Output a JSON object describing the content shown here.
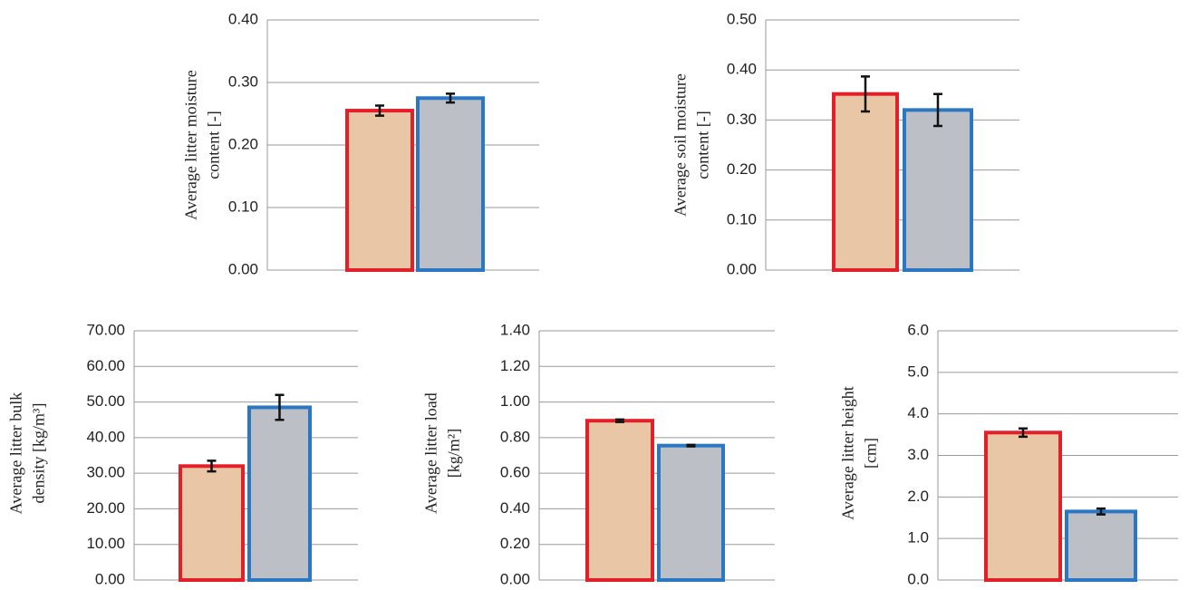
{
  "chart_data": [
    {
      "type": "bar",
      "ylabel": [
        "Average litter moisture",
        "content [-]"
      ],
      "ylim": [
        0,
        0.4
      ],
      "yticks": [
        {
          "value": 0,
          "label": "0.00"
        },
        {
          "value": 0.1,
          "label": "0.10"
        },
        {
          "value": 0.2,
          "label": "0.20"
        },
        {
          "value": 0.3,
          "label": "0.30"
        },
        {
          "value": 0.4,
          "label": "0.40"
        }
      ],
      "grid": true,
      "series": [
        {
          "color": "#e3202a",
          "fill": "#e9c7a6",
          "values": [
            0.255
          ],
          "errors": [
            0.008
          ]
        },
        {
          "color": "#2a78c2",
          "fill": "#bcbfc6",
          "values": [
            0.275
          ],
          "errors": [
            0.007
          ]
        }
      ]
    },
    {
      "type": "bar",
      "ylabel": [
        "Average soil moisture",
        "content [-]"
      ],
      "ylim": [
        0,
        0.5
      ],
      "yticks": [
        {
          "value": 0,
          "label": "0.00"
        },
        {
          "value": 0.1,
          "label": "0.10"
        },
        {
          "value": 0.2,
          "label": "0.20"
        },
        {
          "value": 0.3,
          "label": "0.30"
        },
        {
          "value": 0.4,
          "label": "0.40"
        },
        {
          "value": 0.5,
          "label": "0.50"
        }
      ],
      "grid": true,
      "series": [
        {
          "color": "#e3202a",
          "fill": "#e9c7a6",
          "values": [
            0.352
          ],
          "errors": [
            0.035
          ]
        },
        {
          "color": "#2a78c2",
          "fill": "#bcbfc6",
          "values": [
            0.32
          ],
          "errors": [
            0.032
          ]
        }
      ]
    },
    {
      "type": "bar",
      "ylabel": [
        "Average litter bulk",
        "density  [kg/m³]"
      ],
      "ylim": [
        0,
        70
      ],
      "yticks": [
        {
          "value": 0,
          "label": "0.00"
        },
        {
          "value": 10,
          "label": "10.00"
        },
        {
          "value": 20,
          "label": "20.00"
        },
        {
          "value": 30,
          "label": "30.00"
        },
        {
          "value": 40,
          "label": "40.00"
        },
        {
          "value": 50,
          "label": "50.00"
        },
        {
          "value": 60,
          "label": "60.00"
        },
        {
          "value": 70,
          "label": "70.00"
        }
      ],
      "grid": true,
      "series": [
        {
          "color": "#e3202a",
          "fill": "#e9c7a6",
          "values": [
            32
          ],
          "errors": [
            1.5
          ]
        },
        {
          "color": "#2a78c2",
          "fill": "#bcbfc6",
          "values": [
            48.5
          ],
          "errors": [
            3.5
          ]
        }
      ]
    },
    {
      "type": "bar",
      "ylabel": [
        "Average litter  load",
        "[kg/m²]"
      ],
      "ylim": [
        0,
        1.4
      ],
      "yticks": [
        {
          "value": 0,
          "label": "0.00"
        },
        {
          "value": 0.2,
          "label": "0.20"
        },
        {
          "value": 0.4,
          "label": "0.40"
        },
        {
          "value": 0.6,
          "label": "0.60"
        },
        {
          "value": 0.8,
          "label": "0.80"
        },
        {
          "value": 1,
          "label": "1.00"
        },
        {
          "value": 1.2,
          "label": "1.20"
        },
        {
          "value": 1.4,
          "label": "1.40"
        }
      ],
      "grid": true,
      "series": [
        {
          "color": "#e3202a",
          "fill": "#e9c7a6",
          "values": [
            0.895
          ],
          "errors": [
            0.007
          ]
        },
        {
          "color": "#2a78c2",
          "fill": "#bcbfc6",
          "values": [
            0.755
          ],
          "errors": [
            0.004
          ]
        }
      ]
    },
    {
      "type": "bar",
      "ylabel": [
        "Average litter  height",
        "[cm]"
      ],
      "ylim": [
        0,
        6
      ],
      "yticks": [
        {
          "value": 0,
          "label": "0.0"
        },
        {
          "value": 1,
          "label": "1.0"
        },
        {
          "value": 2,
          "label": "2.0"
        },
        {
          "value": 3,
          "label": "3.0"
        },
        {
          "value": 4,
          "label": "4.0"
        },
        {
          "value": 5,
          "label": "5.0"
        },
        {
          "value": 6,
          "label": "6.0"
        }
      ],
      "grid": true,
      "series": [
        {
          "color": "#e3202a",
          "fill": "#e9c7a6",
          "values": [
            3.55
          ],
          "errors": [
            0.1
          ]
        },
        {
          "color": "#2a78c2",
          "fill": "#bcbfc6",
          "values": [
            1.65
          ],
          "errors": [
            0.07
          ]
        }
      ]
    }
  ]
}
